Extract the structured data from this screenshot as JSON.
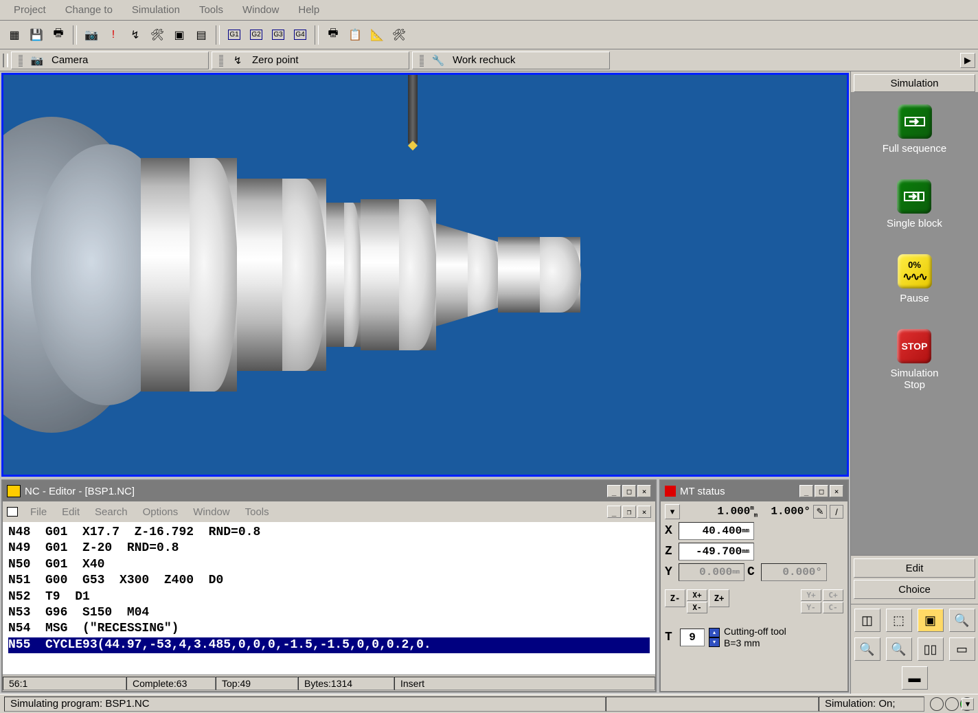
{
  "menubar": [
    "Project",
    "Change to",
    "Simulation",
    "Tools",
    "Window",
    "Help"
  ],
  "tabs": [
    {
      "label": "Camera"
    },
    {
      "label": "Zero point"
    },
    {
      "label": "Work rechuck"
    }
  ],
  "viewport": {
    "background": "#1a5a9e",
    "border": "#0020ff"
  },
  "editor": {
    "title": "NC - Editor - [BSP1.NC]",
    "menubar": [
      "File",
      "Edit",
      "Search",
      "Options",
      "Window",
      "Tools"
    ],
    "lines": [
      "N48  G01  X17.7  Z-16.792  RND=0.8",
      "N49  G01  Z-20  RND=0.8",
      "N50  G01  X40",
      "N51  G00  G53  X300  Z400  D0",
      "N52  T9  D1",
      "N53  G96  S150  M04",
      "N54  MSG  (\"RECESSING\")",
      "N55  CYCLE93(44.97,-53,4,3.485,0,0,0,-1.5,-1.5,0,0,0.2,0."
    ],
    "highlighted_line_index": 7,
    "status": {
      "pos": "56:1",
      "complete": "Complete:63",
      "top": "Top:49",
      "bytes": "Bytes:1314",
      "mode": "Insert"
    }
  },
  "mt_status": {
    "title": "MT  status",
    "scale1": "1.000",
    "scale1_unit": "m\nm",
    "scale2": "1.000°",
    "x_label": "X",
    "x_value": "40.400",
    "z_label": "Z",
    "z_value": "-49.700",
    "y_label": "Y",
    "y_value": "0.000",
    "c_label": "C",
    "c_value": "0.000°",
    "jog": {
      "zminus": "Z-",
      "xplus": "X+",
      "xminus": "X-",
      "zplus": "Z+",
      "yplus": "Y+",
      "yminus": "Y-",
      "cplus": "C+",
      "cminus": "C-"
    },
    "tool_label": "T",
    "tool_number": "9",
    "tool_name": "Cutting-off tool",
    "tool_size": "B=3 mm"
  },
  "sim_panel": {
    "header": "Simulation",
    "buttons": [
      {
        "label": "Full sequence",
        "style": "green-arrow"
      },
      {
        "label": "Single block",
        "style": "green-step"
      },
      {
        "label": "Pause",
        "style": "yellow",
        "text": "0%"
      },
      {
        "label": "Simulation\nStop",
        "style": "red",
        "text": "STOP"
      }
    ],
    "edit_label": "Edit",
    "choice_label": "Choice"
  },
  "statusbar": {
    "text": "Simulating program: BSP1.NC",
    "right": "Simulation: On;",
    "lights": [
      "#d4d0c8",
      "#d4d0c8",
      "#00cc00"
    ]
  }
}
